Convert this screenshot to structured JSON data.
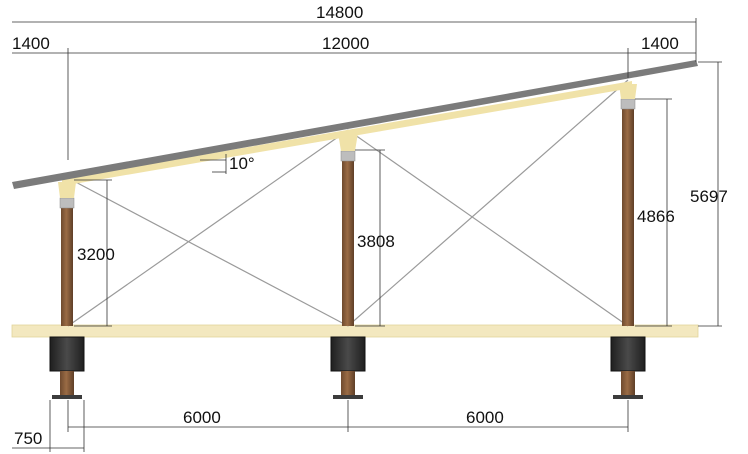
{
  "dimensions": {
    "total_width": "14800",
    "left_overhang": "1400",
    "main_span": "12000",
    "right_overhang": "1400",
    "left_post_height": "3200",
    "middle_post_height": "3808",
    "right_post_height": "4866",
    "overall_height": "5697",
    "left_bay": "6000",
    "right_bay": "6000",
    "foundation_offset": "750",
    "roof_angle": "10°"
  },
  "colors": {
    "roof": "#7b7b7b",
    "beam": "#f0e2a8",
    "post": "#8b5e3c",
    "foundation": "#3a3a3a",
    "floor": "#f3e8bf",
    "brace": "#9a9a9a"
  }
}
